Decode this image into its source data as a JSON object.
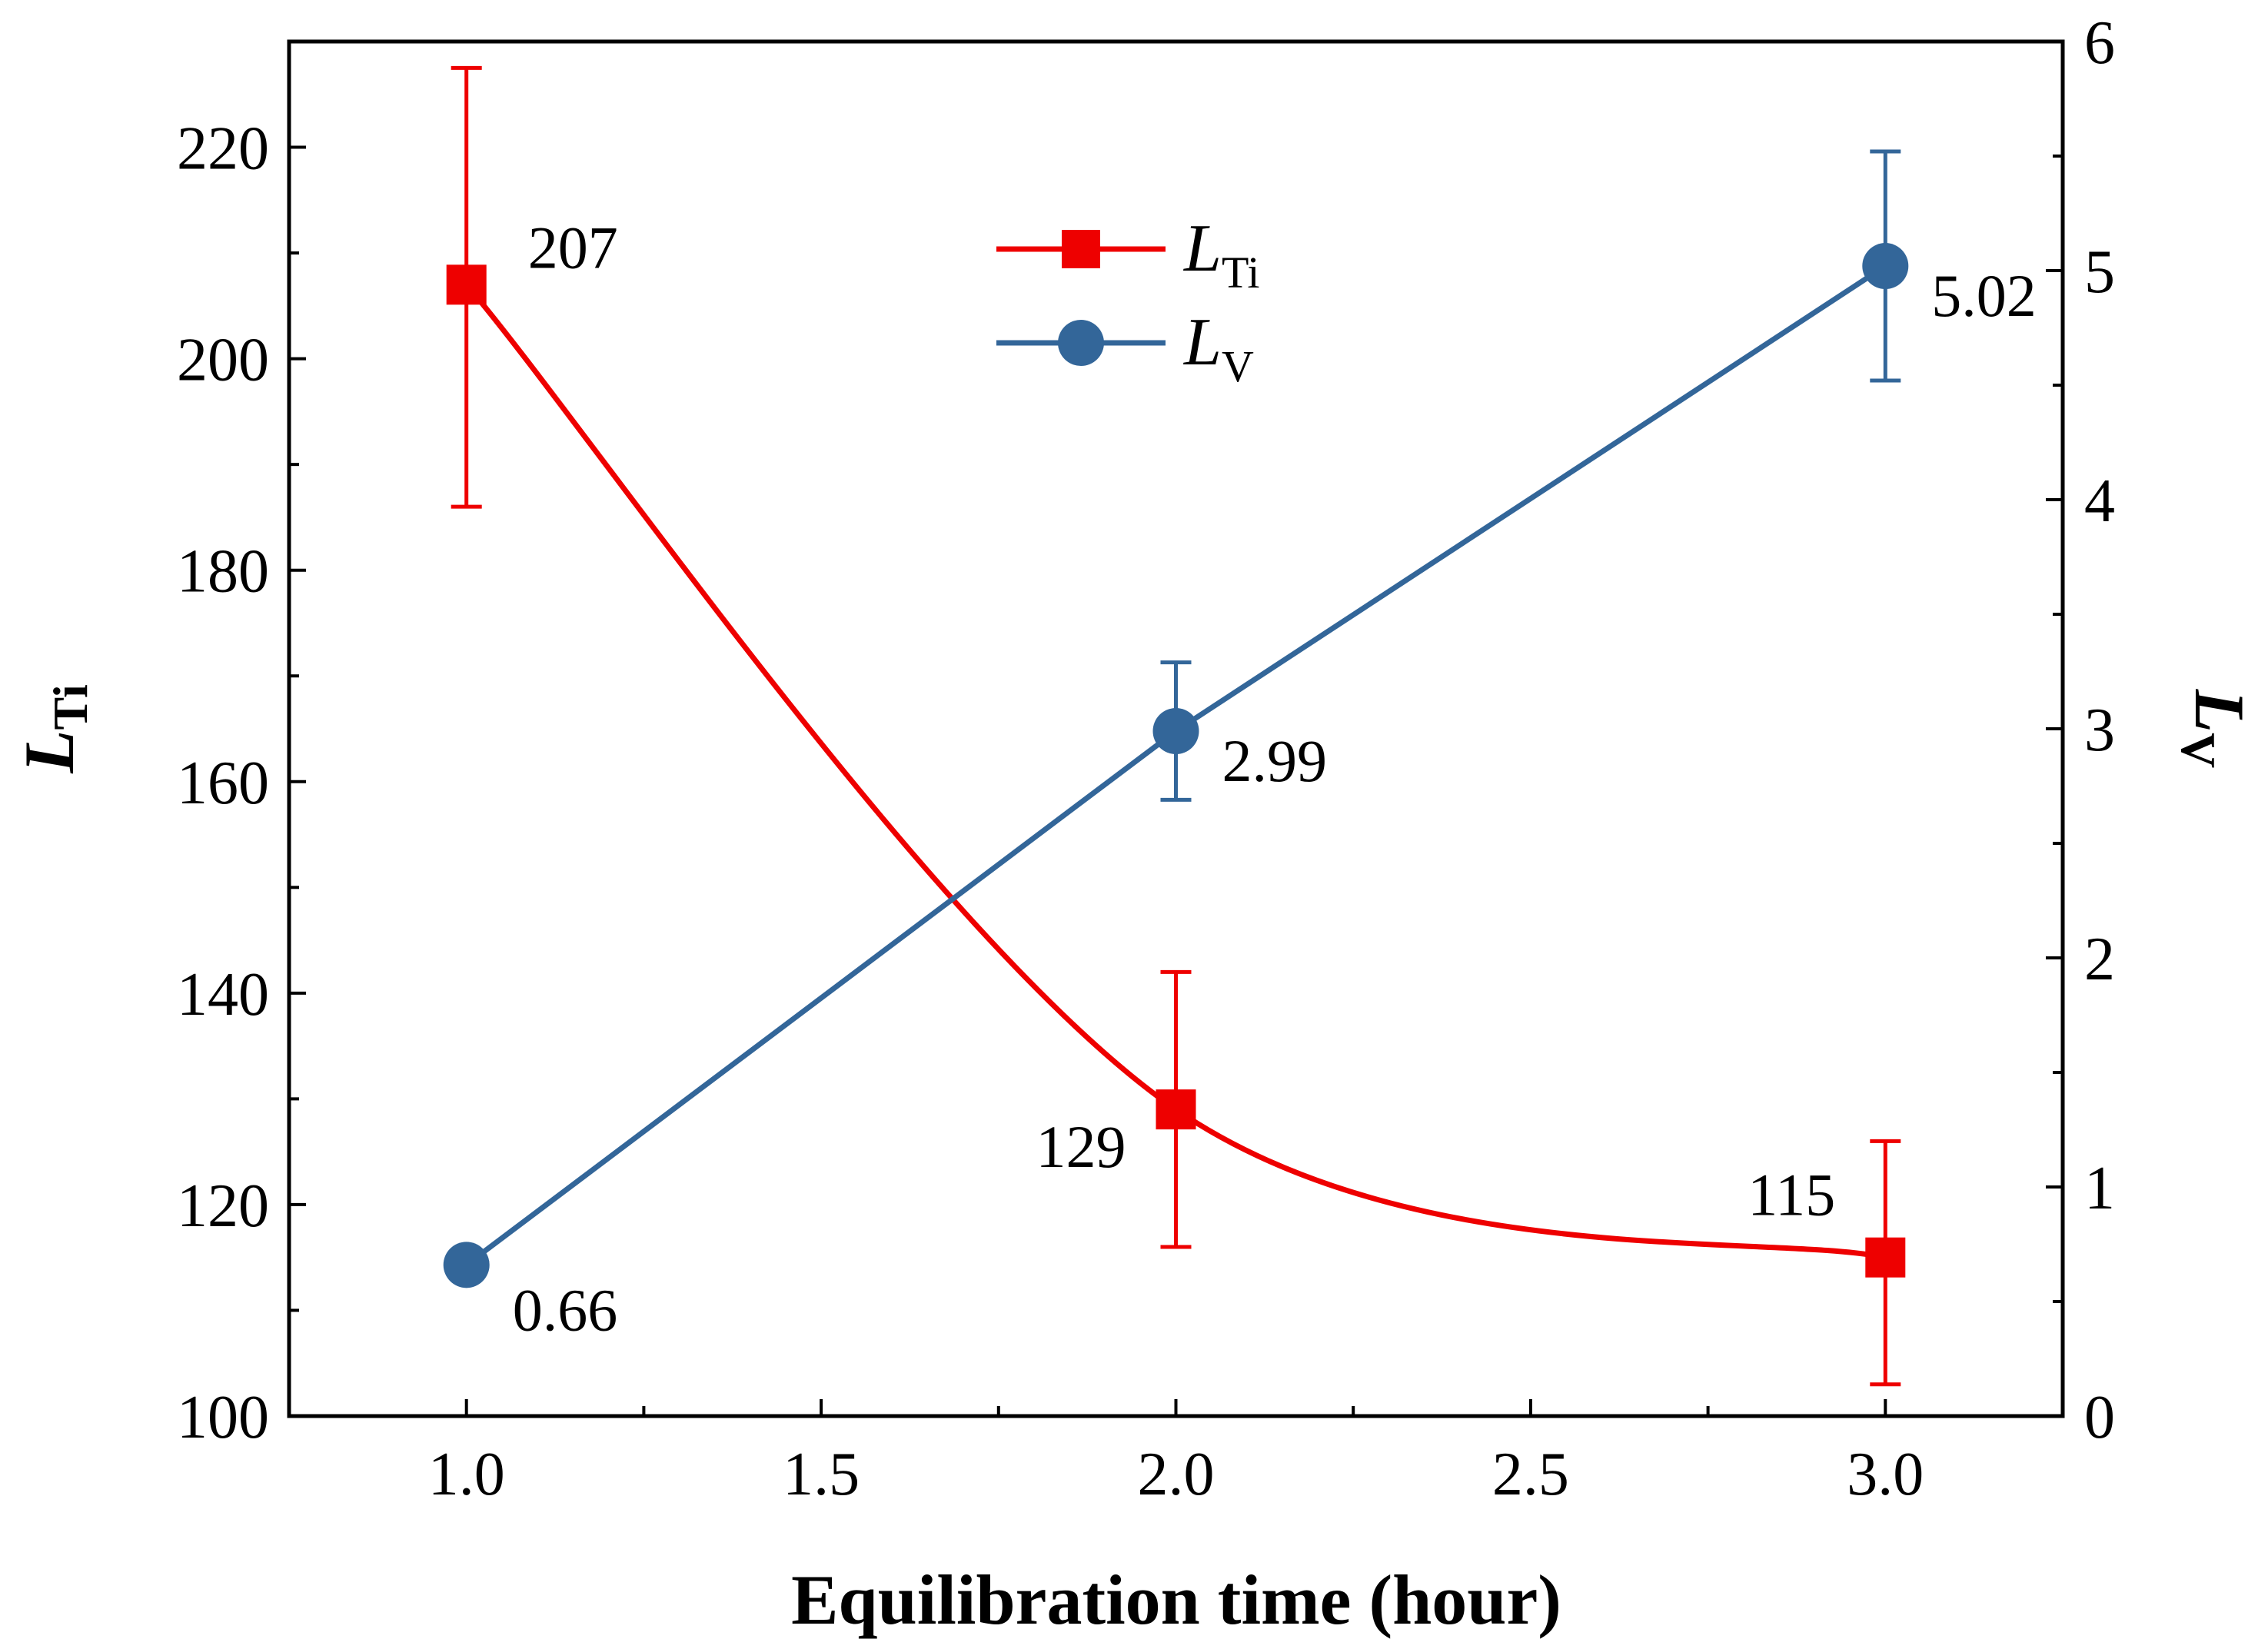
{
  "chart_data": {
    "type": "line",
    "title": "",
    "xlabel": "Equilibration time (hour)",
    "x": [
      1.0,
      2.0,
      3.0
    ],
    "xlim": [
      0.75,
      3.25
    ],
    "xticks": [
      "1.0",
      "1.5",
      "2.0",
      "2.5",
      "3.0"
    ],
    "xtick_values": [
      1.0,
      1.5,
      2.0,
      2.5,
      3.0
    ],
    "y_left": {
      "label_main": "L",
      "label_sub": "Ti",
      "ylim": [
        100,
        230
      ],
      "ticks": [
        "100",
        "120",
        "140",
        "160",
        "180",
        "200",
        "220"
      ],
      "tick_values": [
        100,
        120,
        140,
        160,
        180,
        200,
        220
      ]
    },
    "y_right": {
      "label_main": "L",
      "label_sub": "V",
      "ylim": [
        0,
        6
      ],
      "ticks": [
        "0",
        "1",
        "2",
        "3",
        "4",
        "5",
        "6"
      ],
      "tick_values": [
        0,
        1,
        2,
        3,
        4,
        5,
        6
      ]
    },
    "series": [
      {
        "name": "LTi",
        "legend_main": "L",
        "legend_sub": "Ti",
        "axis": "left",
        "marker": "square",
        "color": "#ee0000",
        "smooth": true,
        "values": [
          207,
          129,
          115
        ],
        "err_low": [
          186,
          116,
          103
        ],
        "err_high": [
          227.5,
          142,
          126
        ],
        "labels": [
          "207",
          "129",
          "115"
        ]
      },
      {
        "name": "LV",
        "legend_main": "L",
        "legend_sub": "V",
        "axis": "right",
        "marker": "circle",
        "color": "#336699",
        "smooth": false,
        "values": [
          0.66,
          2.99,
          5.02
        ],
        "err_low": [
          0.66,
          2.69,
          4.52
        ],
        "err_high": [
          0.66,
          3.29,
          5.52
        ],
        "labels": [
          "0.66",
          "2.99",
          "5.02"
        ]
      }
    ],
    "legend_position": "top-center"
  }
}
